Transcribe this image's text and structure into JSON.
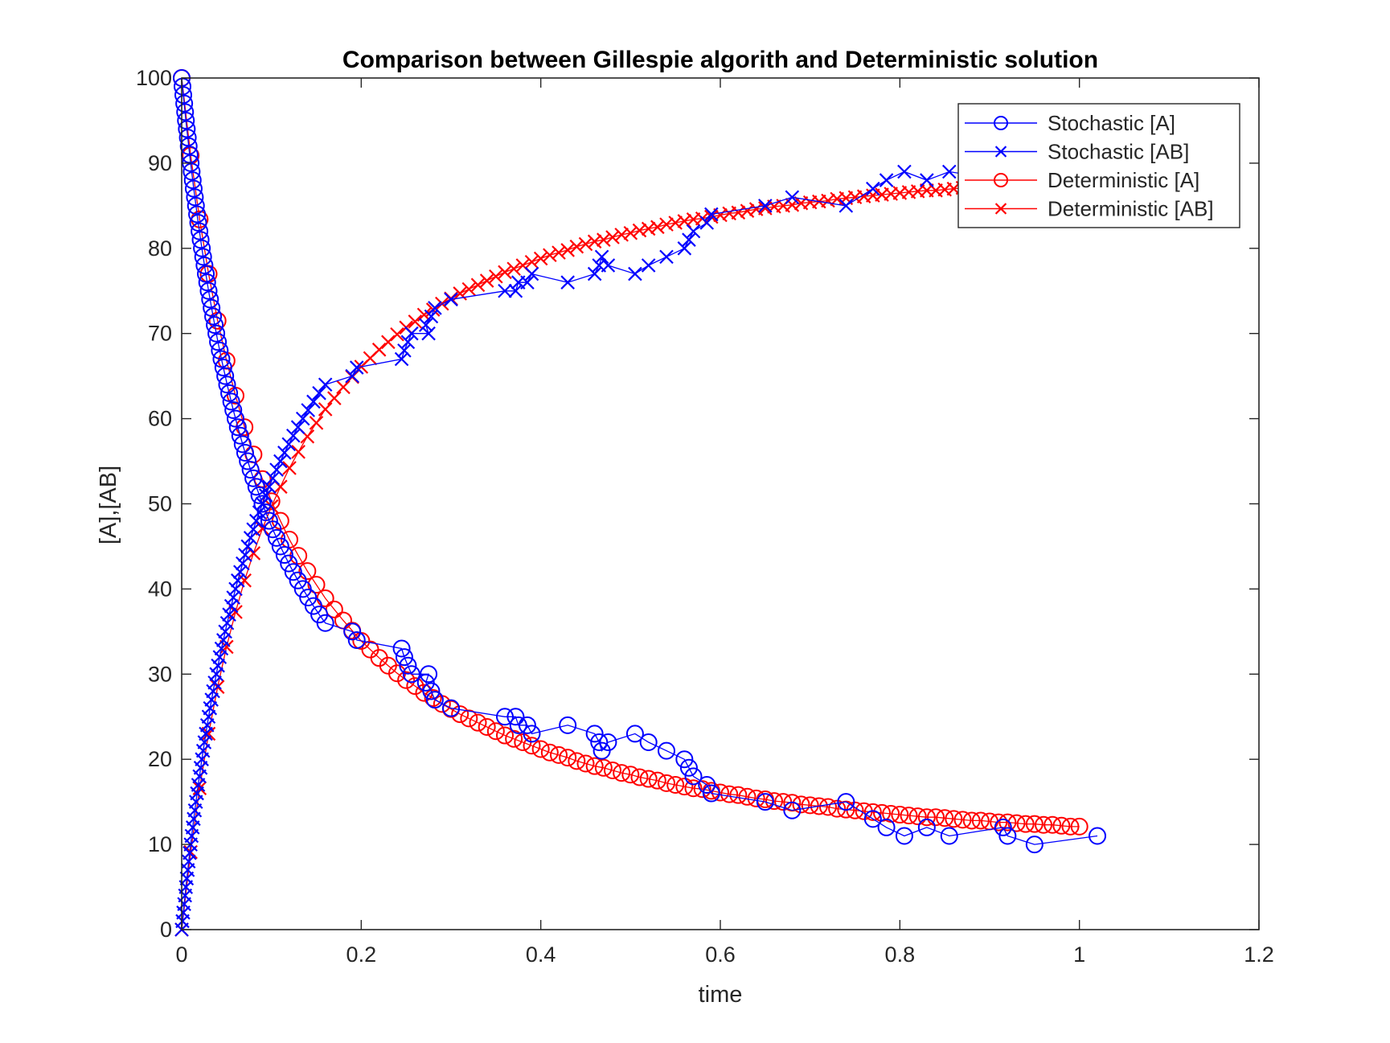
{
  "chart_data": {
    "type": "line",
    "title": "Comparison between Gillespie algorith and Deterministic solution",
    "xlabel": "time",
    "ylabel": "[A],[AB]",
    "xlim": [
      0,
      1.2
    ],
    "ylim": [
      0,
      100
    ],
    "xticks": [
      "0",
      "0.2",
      "0.4",
      "0.6",
      "0.8",
      "1",
      "1.2"
    ],
    "xtick_values": [
      0,
      0.2,
      0.4,
      0.6,
      0.8,
      1,
      1.2
    ],
    "yticks": [
      "0",
      "10",
      "20",
      "30",
      "40",
      "50",
      "60",
      "70",
      "80",
      "90",
      "100"
    ],
    "ytick_values": [
      0,
      10,
      20,
      30,
      40,
      50,
      60,
      70,
      80,
      90,
      100
    ],
    "grid": false,
    "legend_position": "top-right",
    "series": [
      {
        "name": "Stochastic [A]",
        "color": "#0000ff",
        "marker": "circle",
        "key": "stochastic",
        "field": "A"
      },
      {
        "name": "Stochastic [AB]",
        "color": "#0000ff",
        "marker": "x",
        "key": "stochastic",
        "field": "AB"
      },
      {
        "name": "Deterministic [A]",
        "color": "#ff0000",
        "marker": "circle",
        "key": "deterministic",
        "field": "A"
      },
      {
        "name": "Deterministic [AB]",
        "color": "#ff0000",
        "marker": "x",
        "key": "deterministic",
        "field": "AB"
      }
    ],
    "stochastic": {
      "t": [
        0,
        0.0009,
        0.0018,
        0.0028,
        0.0038,
        0.0047,
        0.0057,
        0.0068,
        0.0078,
        0.0089,
        0.01,
        0.0111,
        0.0123,
        0.0134,
        0.0147,
        0.0159,
        0.0171,
        0.0184,
        0.0198,
        0.0211,
        0.0225,
        0.0239,
        0.0254,
        0.0269,
        0.0284,
        0.03,
        0.0316,
        0.0333,
        0.035,
        0.0368,
        0.0386,
        0.0404,
        0.0424,
        0.0443,
        0.0464,
        0.0485,
        0.0506,
        0.0529,
        0.0552,
        0.0575,
        0.06,
        0.0625,
        0.0652,
        0.0679,
        0.0707,
        0.0736,
        0.0767,
        0.0798,
        0.0831,
        0.0865,
        0.09,
        0.0937,
        0.0975,
        0.1015,
        0.1057,
        0.11,
        0.1145,
        0.1193,
        0.1243,
        0.1295,
        0.135,
        0.1408,
        0.1468,
        0.1532,
        0.16,
        0.19,
        0.195,
        0.245,
        0.248,
        0.252,
        0.256,
        0.275,
        0.272,
        0.278,
        0.282,
        0.3,
        0.36,
        0.372,
        0.375,
        0.385,
        0.39,
        0.43,
        0.46,
        0.465,
        0.468,
        0.475,
        0.505,
        0.52,
        0.54,
        0.56,
        0.565,
        0.57,
        0.585,
        0.59,
        0.65,
        0.68,
        0.74,
        0.77,
        0.785,
        0.805,
        0.83,
        0.855,
        0.915,
        0.92,
        0.95,
        1.02
      ],
      "A": [
        100,
        99,
        98,
        97,
        96,
        95,
        94,
        93,
        92,
        91,
        90,
        89,
        88,
        87,
        86,
        85,
        84,
        83,
        82,
        81,
        80,
        79,
        78,
        77,
        76,
        75,
        74,
        73,
        72,
        71,
        70,
        69,
        68,
        67,
        66,
        65,
        64,
        63,
        62,
        61,
        60,
        59,
        58,
        57,
        56,
        55,
        54,
        53,
        52,
        51,
        50,
        49,
        48,
        47,
        46,
        45,
        44,
        43,
        42,
        41,
        40,
        39,
        38,
        37,
        36,
        35,
        34,
        33,
        32,
        31,
        30,
        30,
        29,
        28,
        27,
        26,
        25,
        25,
        24,
        24,
        23,
        24,
        23,
        22,
        21,
        22,
        23,
        22,
        21,
        20,
        19,
        18,
        17,
        16,
        15,
        14,
        15,
        13,
        12,
        11,
        12,
        11,
        12,
        11,
        10,
        11
      ],
      "AB": [
        0,
        1,
        2,
        3,
        4,
        5,
        6,
        7,
        8,
        9,
        10,
        11,
        12,
        13,
        14,
        15,
        16,
        17,
        18,
        19,
        20,
        21,
        22,
        23,
        24,
        25,
        26,
        27,
        28,
        29,
        30,
        31,
        32,
        33,
        34,
        35,
        36,
        37,
        38,
        39,
        40,
        41,
        42,
        43,
        44,
        45,
        46,
        47,
        48,
        49,
        50,
        51,
        52,
        53,
        54,
        55,
        56,
        57,
        58,
        59,
        60,
        61,
        62,
        63,
        64,
        65,
        66,
        67,
        68,
        69,
        70,
        70,
        71,
        72,
        73,
        74,
        75,
        75,
        76,
        76,
        77,
        76,
        77,
        78,
        79,
        78,
        77,
        78,
        79,
        80,
        81,
        82,
        83,
        84,
        85,
        86,
        85,
        87,
        88,
        89,
        88,
        89,
        88,
        89,
        90,
        89
      ]
    },
    "deterministic": {
      "t_start": 0,
      "t_step": 0.01,
      "A": [
        100,
        90.9,
        83.4,
        77.0,
        71.5,
        66.8,
        62.7,
        59.0,
        55.8,
        52.9,
        50.3,
        48.0,
        45.8,
        43.9,
        42.1,
        40.5,
        38.9,
        37.6,
        36.3,
        35.1,
        33.9,
        32.9,
        31.9,
        31.0,
        30.1,
        29.3,
        28.6,
        27.8,
        27.2,
        26.5,
        25.9,
        25.3,
        24.8,
        24.3,
        23.8,
        23.3,
        22.8,
        22.4,
        22.0,
        21.6,
        21.2,
        20.8,
        20.5,
        20.2,
        19.8,
        19.5,
        19.2,
        19.0,
        18.7,
        18.4,
        18.2,
        17.9,
        17.7,
        17.5,
        17.2,
        17.0,
        16.8,
        16.6,
        16.5,
        16.3,
        16.1,
        15.9,
        15.8,
        15.6,
        15.4,
        15.3,
        15.1,
        15.0,
        14.9,
        14.7,
        14.6,
        14.5,
        14.4,
        14.2,
        14.1,
        14.0,
        13.9,
        13.8,
        13.7,
        13.6,
        13.5,
        13.4,
        13.3,
        13.2,
        13.2,
        13.1,
        13.0,
        12.9,
        12.8,
        12.8,
        12.7,
        12.6,
        12.6,
        12.5,
        12.4,
        12.4,
        12.3,
        12.3,
        12.2,
        12.1,
        12.1
      ],
      "AB": [
        0,
        9.1,
        16.6,
        23.0,
        28.5,
        33.2,
        37.3,
        41.0,
        44.2,
        47.1,
        49.7,
        52.0,
        54.2,
        56.1,
        57.9,
        59.5,
        61.1,
        62.4,
        63.7,
        64.9,
        66.1,
        67.1,
        68.1,
        69.0,
        69.9,
        70.7,
        71.4,
        72.2,
        72.8,
        73.5,
        74.1,
        74.7,
        75.2,
        75.7,
        76.2,
        76.7,
        77.2,
        77.6,
        78.0,
        78.4,
        78.8,
        79.2,
        79.5,
        79.8,
        80.2,
        80.5,
        80.8,
        81.0,
        81.3,
        81.6,
        81.8,
        82.1,
        82.3,
        82.5,
        82.8,
        83.0,
        83.2,
        83.4,
        83.5,
        83.7,
        83.9,
        84.1,
        84.2,
        84.4,
        84.6,
        84.7,
        84.9,
        85.0,
        85.1,
        85.3,
        85.4,
        85.5,
        85.6,
        85.8,
        85.9,
        86.0,
        86.1,
        86.2,
        86.3,
        86.4,
        86.5,
        86.6,
        86.7,
        86.8,
        86.8,
        86.9,
        87.0,
        87.1,
        87.2,
        87.2,
        87.3,
        87.4,
        87.4,
        87.5,
        87.6,
        87.6,
        87.7,
        87.7,
        87.8,
        87.9,
        87.9
      ]
    }
  }
}
